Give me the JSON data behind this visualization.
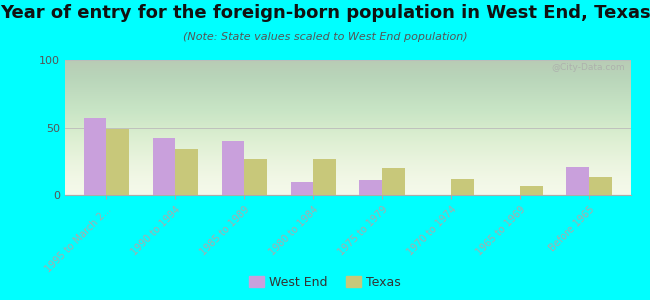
{
  "title": "Year of entry for the foreign-born population in West End, Texas",
  "subtitle": "(Note: State values scaled to West End population)",
  "categories": [
    "1995 to March 2...",
    "1990 to 1994",
    "1985 to 1989",
    "1980 to 1984",
    "1975 to 1979",
    "1970 to 1974",
    "1965 to 1969",
    "Before 1965"
  ],
  "west_end_values": [
    57,
    42,
    40,
    10,
    11,
    0,
    0,
    21
  ],
  "texas_values": [
    49,
    34,
    27,
    27,
    20,
    12,
    7,
    13
  ],
  "west_end_color": "#c9a0dc",
  "texas_color": "#c8c87a",
  "fig_background": "#00ffff",
  "ylim": [
    0,
    100
  ],
  "yticks": [
    0,
    50,
    100
  ],
  "title_fontsize": 13,
  "subtitle_fontsize": 8,
  "legend_labels": [
    "West End",
    "Texas"
  ],
  "watermark": "@City-Data.com"
}
